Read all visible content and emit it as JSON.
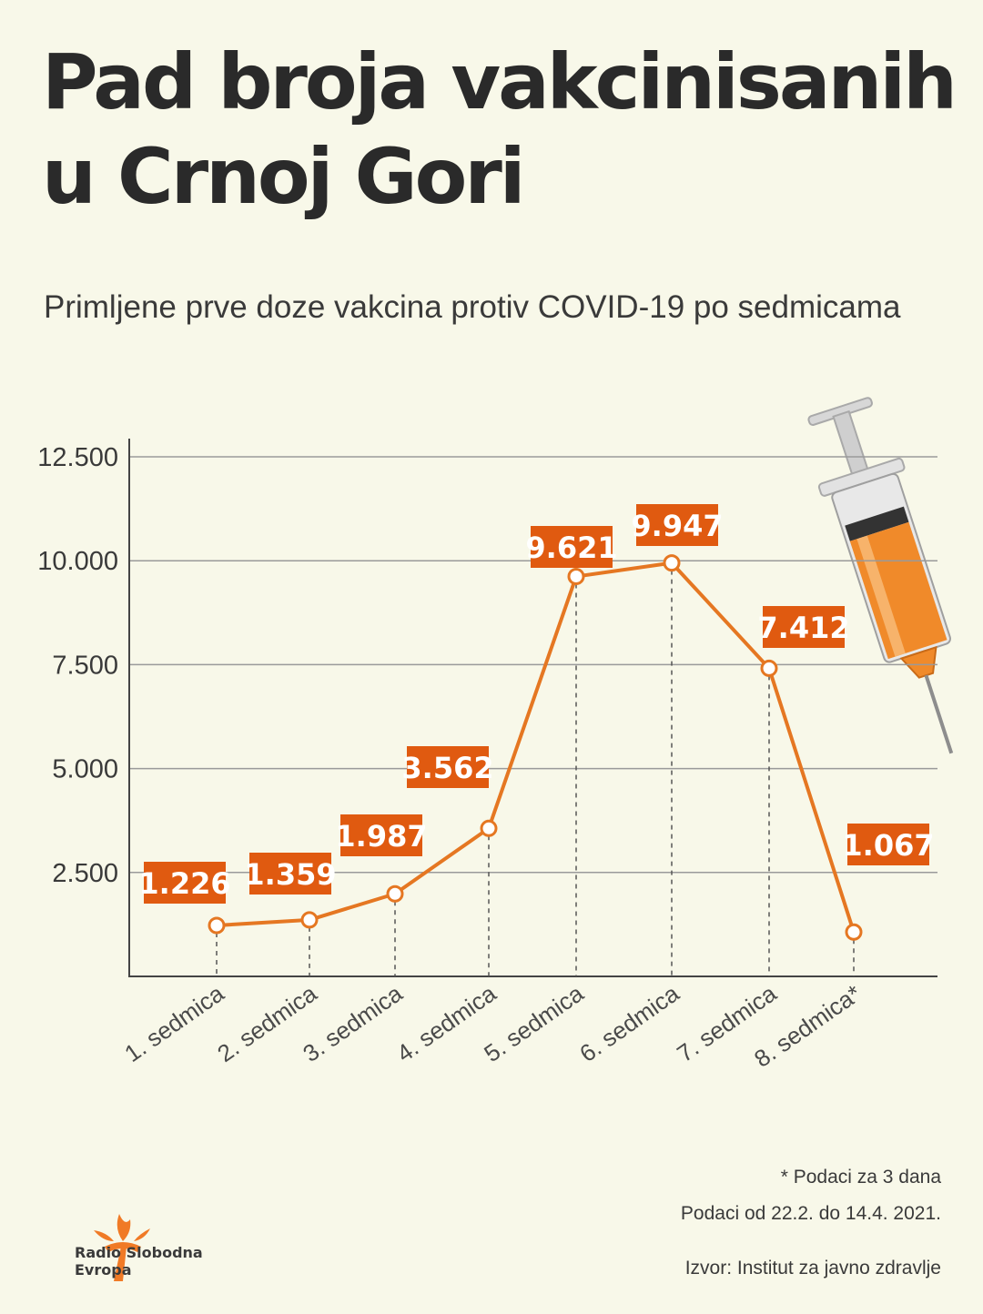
{
  "title": "Pad broja vakcinisanih u Crnoj Gori",
  "subtitle": "Primljene prve doze vakcina protiv COVID-19 po sedmicama",
  "chart_data": {
    "type": "line",
    "categories": [
      "1. sedmica",
      "2. sedmica",
      "3. sedmica",
      "4. sedmica",
      "5. sedmica",
      "6. sedmica",
      "7. sedmica",
      "8. sedmica*"
    ],
    "values": [
      1226,
      1359,
      1987,
      3562,
      9621,
      9947,
      7412,
      1067
    ],
    "value_labels": [
      "1.226",
      "1.359",
      "1.987",
      "3.562",
      "9.621",
      "9.947",
      "7.412",
      "1.067"
    ],
    "y_ticks": [
      2500,
      5000,
      7500,
      10000,
      12500
    ],
    "y_tick_labels": [
      "2.500",
      "5.000",
      "7.500",
      "10.000",
      "12.500"
    ],
    "ylim": [
      0,
      12500
    ],
    "grid": "horizontal",
    "colors": {
      "line": "#e57722",
      "label_bg": "#e05a10",
      "grid": "#9a9a9a",
      "axis": "#444444"
    }
  },
  "notes": {
    "asterisk": "* Podaci za 3 dana",
    "period": "Podaci od 22.2. do 14.4. 2021.",
    "source": "Izvor: Institut za javno zdravlje"
  },
  "logo": {
    "icon": "torch-icon",
    "line1": "Radio Slobodna",
    "line2": "Evropa",
    "color": "#f07a26"
  }
}
